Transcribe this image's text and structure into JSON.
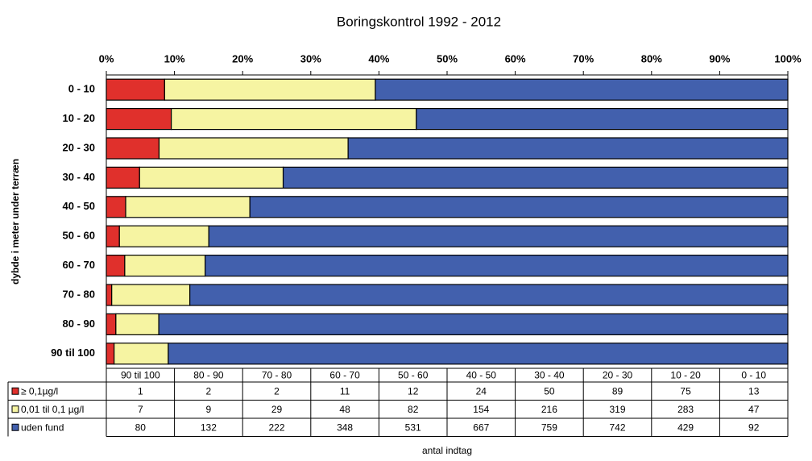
{
  "chart_data": {
    "type": "bar_stacked_percent",
    "orientation": "horizontal",
    "title": "Boringskontrol 1992 - 2012",
    "ylabel": "dybde i meter under terræn",
    "xlabel": "antal indtag",
    "categories": [
      "90 til 100",
      "80 - 90",
      "70 - 80",
      "60 - 70",
      "50 - 60",
      "40 - 50",
      "30 - 40",
      "20 - 30",
      "10 - 20",
      "0 - 10"
    ],
    "series": [
      {
        "name": "≥ 0,1µg/l",
        "color": "#e0302c",
        "values": [
          1,
          2,
          2,
          11,
          12,
          24,
          50,
          89,
          75,
          13
        ]
      },
      {
        "name": "0,01 til 0,1 µg/l",
        "color": "#f6f4a2",
        "values": [
          7,
          9,
          29,
          48,
          82,
          154,
          216,
          319,
          283,
          47
        ]
      },
      {
        "name": "uden fund",
        "color": "#4260ad",
        "values": [
          80,
          132,
          222,
          348,
          531,
          667,
          759,
          742,
          429,
          92
        ]
      }
    ],
    "xlim": [
      0,
      100
    ],
    "xticks": [
      {
        "value": 0,
        "label": "0%"
      },
      {
        "value": 10,
        "label": "10%"
      },
      {
        "value": 20,
        "label": "20%"
      },
      {
        "value": 30,
        "label": "30%"
      },
      {
        "value": 40,
        "label": "40%"
      },
      {
        "value": 50,
        "label": "50%"
      },
      {
        "value": 60,
        "label": "60%"
      },
      {
        "value": 70,
        "label": "70%"
      },
      {
        "value": 80,
        "label": "80%"
      },
      {
        "value": 90,
        "label": "90%"
      },
      {
        "value": 100,
        "label": "100%"
      }
    ],
    "data_table": true
  }
}
